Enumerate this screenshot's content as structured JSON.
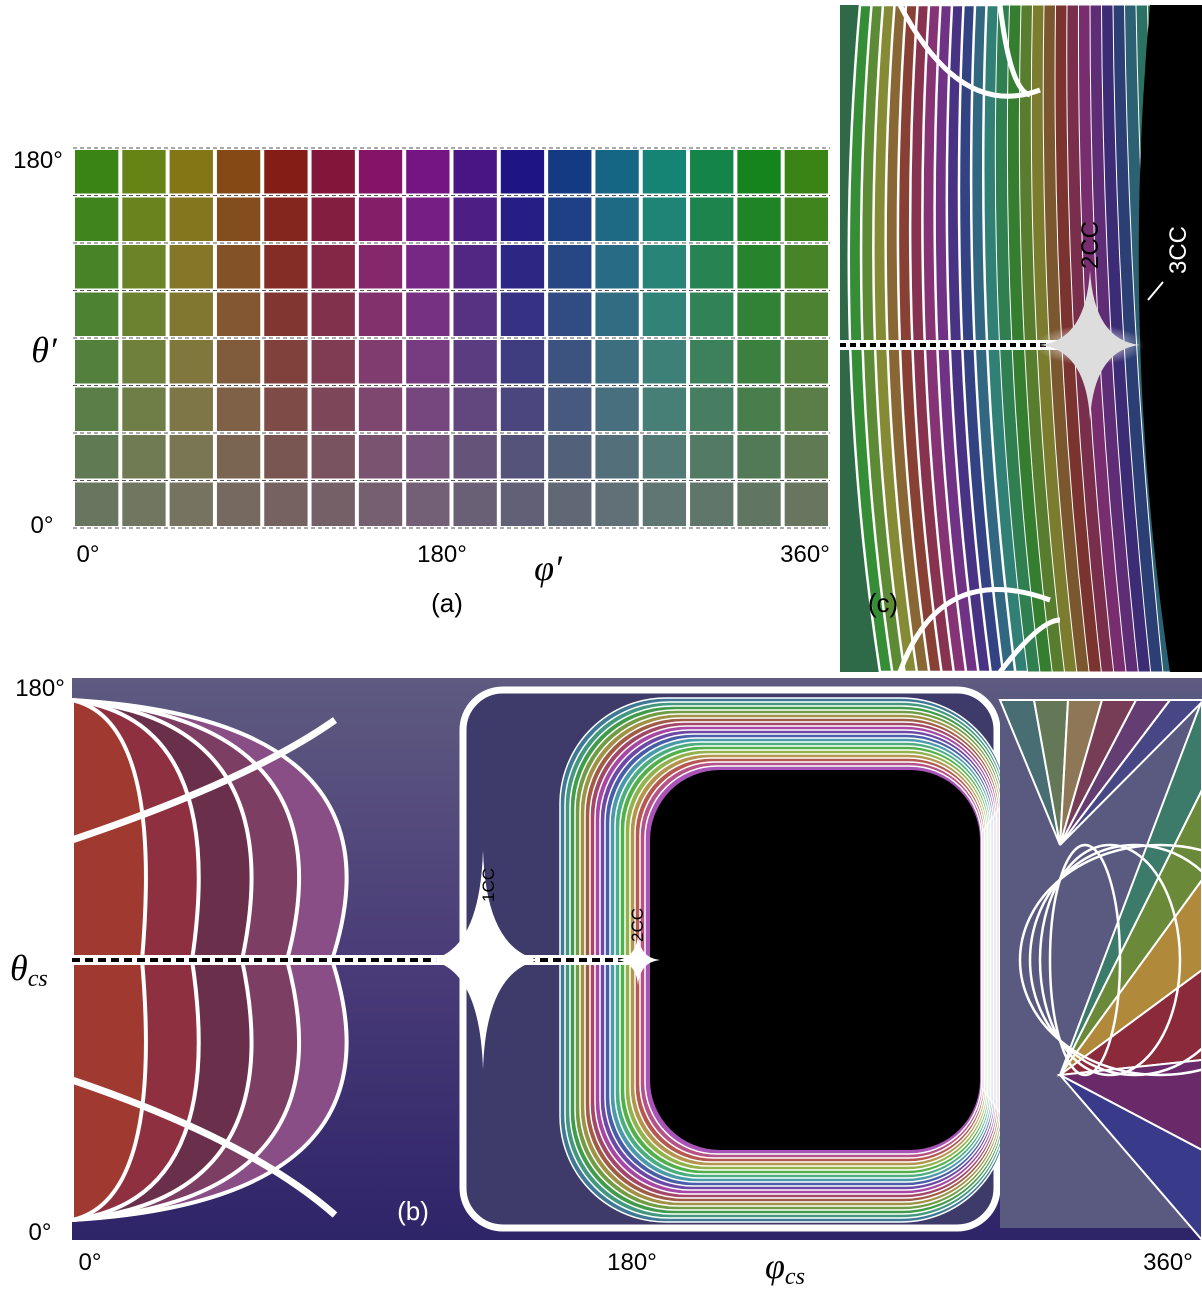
{
  "panel_a": {
    "y_ticks": [
      "180°",
      "0°"
    ],
    "y_label": "θ′",
    "x_ticks": [
      "0°",
      "180°",
      "360°"
    ],
    "x_label": "φ′",
    "caption": "(a)"
  },
  "panel_b": {
    "y_ticks": [
      "180°",
      "0°"
    ],
    "y_label": {
      "symbol": "θ",
      "subscript": "cs"
    },
    "x_ticks": [
      "0°",
      "180°",
      "360°"
    ],
    "x_label": {
      "symbol": "φ",
      "subscript": "cs"
    },
    "caption": "(b)",
    "annotations": [
      "1CC",
      "2CC"
    ]
  },
  "panel_c": {
    "annotations": [
      "2CC",
      "3CC"
    ],
    "caption": "(c)"
  }
}
